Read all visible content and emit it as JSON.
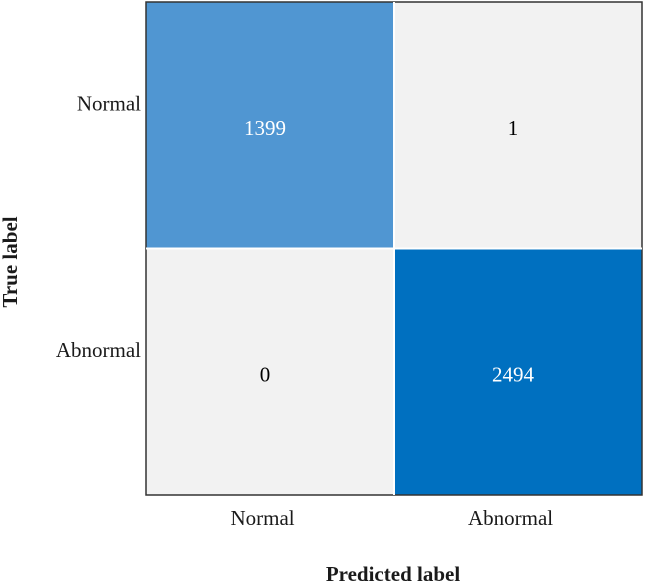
{
  "chart_data": {
    "type": "heatmap",
    "xlabel": "Predicted label",
    "ylabel": "True label",
    "x_categories": [
      "Normal",
      "Abnormal"
    ],
    "y_categories": [
      "Normal",
      "Abnormal"
    ],
    "matrix": [
      [
        1399,
        1
      ],
      [
        0,
        2494
      ]
    ],
    "colors": {
      "high": "#0070c0",
      "mid": "#5b9bd5",
      "low": "#f2f2f2",
      "text_dark": "#000000",
      "text_light": "#ffffff",
      "border": "#333333"
    }
  }
}
